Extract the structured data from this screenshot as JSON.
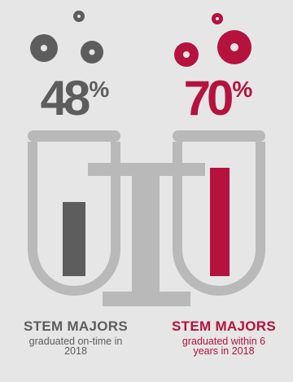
{
  "colors": {
    "background": "#e6e6e6",
    "tube": "#b9b9b9",
    "left_accent": "#5d5d5d",
    "right_accent": "#b5123d"
  },
  "left": {
    "percent": "48",
    "percent_sign": "%",
    "fill_level": 0.48,
    "title": "STEM MAJORS",
    "description": "graduated on-time in 2018"
  },
  "right": {
    "percent": "70",
    "percent_sign": "%",
    "fill_level": 0.7,
    "title": "STEM MAJORS",
    "description": "graduated within 6 years in 2018"
  }
}
